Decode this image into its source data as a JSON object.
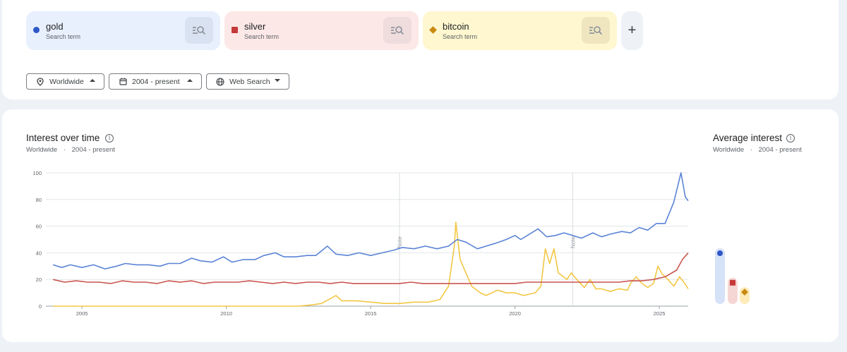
{
  "search_terms": [
    {
      "name": "gold",
      "sub": "Search term",
      "color": "#2f57c8",
      "bg": "#e8f0fe",
      "btn_bg": "#d9e2f0",
      "marker": "circle"
    },
    {
      "name": "silver",
      "sub": "Search term",
      "color": "#c5393a",
      "bg": "#fce8e6",
      "btn_bg": "#efdcdc",
      "marker": "square"
    },
    {
      "name": "bitcoin",
      "sub": "Search term",
      "color": "#c98a12",
      "bg": "#fef7cf",
      "btn_bg": "#efe6c0",
      "marker": "diamond"
    }
  ],
  "add_label": "+",
  "filters": {
    "region": "Worldwide",
    "period": "2004 - present",
    "property": "Web Search"
  },
  "interest_over_time": {
    "title": "Interest over time",
    "region": "Worldwide",
    "period": "2004 - present",
    "separator": "·",
    "info_glyph": "i"
  },
  "average_interest": {
    "title": "Average interest",
    "region": "Worldwide",
    "period": "2004 - present",
    "separator": "·",
    "info_glyph": "i"
  },
  "chart_data": {
    "type": "line",
    "x_range": [
      2003.75,
      2026.0
    ],
    "ylim": [
      0,
      100
    ],
    "y_ticks": [
      0,
      20,
      40,
      60,
      80,
      100
    ],
    "x_ticks": [
      2005,
      2010,
      2015,
      2020,
      2025
    ],
    "grid": true,
    "notes": [
      {
        "x": 2016.0,
        "label": "Note"
      },
      {
        "x": 2022.0,
        "label": "Note"
      }
    ],
    "series": [
      {
        "name": "gold",
        "color": "#5b84d6",
        "points": [
          [
            2004.0,
            31
          ],
          [
            2004.3,
            29
          ],
          [
            2004.6,
            31
          ],
          [
            2005.0,
            29
          ],
          [
            2005.4,
            31
          ],
          [
            2005.8,
            28
          ],
          [
            2006.2,
            30
          ],
          [
            2006.5,
            32
          ],
          [
            2006.9,
            31
          ],
          [
            2007.3,
            31
          ],
          [
            2007.7,
            30
          ],
          [
            2008.0,
            32
          ],
          [
            2008.4,
            32
          ],
          [
            2008.8,
            36
          ],
          [
            2009.1,
            34
          ],
          [
            2009.5,
            33
          ],
          [
            2009.9,
            37
          ],
          [
            2010.2,
            33
          ],
          [
            2010.6,
            35
          ],
          [
            2011.0,
            35
          ],
          [
            2011.3,
            38
          ],
          [
            2011.7,
            40
          ],
          [
            2012.0,
            37
          ],
          [
            2012.4,
            37
          ],
          [
            2012.8,
            38
          ],
          [
            2013.1,
            38
          ],
          [
            2013.5,
            45
          ],
          [
            2013.8,
            39
          ],
          [
            2014.2,
            38
          ],
          [
            2014.6,
            40
          ],
          [
            2015.0,
            38
          ],
          [
            2015.4,
            40
          ],
          [
            2015.8,
            42
          ],
          [
            2016.1,
            44
          ],
          [
            2016.5,
            43
          ],
          [
            2016.9,
            45
          ],
          [
            2017.3,
            43
          ],
          [
            2017.7,
            45
          ],
          [
            2018.0,
            50
          ],
          [
            2018.3,
            48
          ],
          [
            2018.7,
            43
          ],
          [
            2019.0,
            45
          ],
          [
            2019.3,
            47
          ],
          [
            2019.7,
            50
          ],
          [
            2020.0,
            53
          ],
          [
            2020.2,
            50
          ],
          [
            2020.5,
            54
          ],
          [
            2020.8,
            58
          ],
          [
            2021.1,
            52
          ],
          [
            2021.4,
            53
          ],
          [
            2021.7,
            55
          ],
          [
            2022.0,
            53
          ],
          [
            2022.3,
            51
          ],
          [
            2022.7,
            55
          ],
          [
            2023.0,
            52
          ],
          [
            2023.3,
            54
          ],
          [
            2023.7,
            56
          ],
          [
            2024.0,
            55
          ],
          [
            2024.3,
            59
          ],
          [
            2024.6,
            57
          ],
          [
            2024.9,
            62
          ],
          [
            2025.2,
            62
          ],
          [
            2025.5,
            78
          ],
          [
            2025.75,
            100
          ],
          [
            2025.9,
            82
          ],
          [
            2026.0,
            79
          ]
        ]
      },
      {
        "name": "silver",
        "color": "#c9544f",
        "points": [
          [
            2004.0,
            20
          ],
          [
            2004.4,
            18
          ],
          [
            2004.8,
            19
          ],
          [
            2005.2,
            18
          ],
          [
            2005.6,
            18
          ],
          [
            2006.0,
            17
          ],
          [
            2006.4,
            19
          ],
          [
            2006.8,
            18
          ],
          [
            2007.2,
            18
          ],
          [
            2007.6,
            17
          ],
          [
            2008.0,
            19
          ],
          [
            2008.4,
            18
          ],
          [
            2008.8,
            19
          ],
          [
            2009.2,
            17
          ],
          [
            2009.6,
            18
          ],
          [
            2010.0,
            18
          ],
          [
            2010.4,
            18
          ],
          [
            2010.8,
            19
          ],
          [
            2011.2,
            18
          ],
          [
            2011.6,
            17
          ],
          [
            2012.0,
            18
          ],
          [
            2012.4,
            17
          ],
          [
            2012.8,
            18
          ],
          [
            2013.2,
            18
          ],
          [
            2013.6,
            17
          ],
          [
            2014.0,
            18
          ],
          [
            2014.4,
            17
          ],
          [
            2014.8,
            17
          ],
          [
            2015.2,
            17
          ],
          [
            2015.6,
            17
          ],
          [
            2016.0,
            17
          ],
          [
            2016.4,
            18
          ],
          [
            2016.8,
            17
          ],
          [
            2017.2,
            17
          ],
          [
            2017.6,
            17
          ],
          [
            2018.0,
            17
          ],
          [
            2018.4,
            17
          ],
          [
            2018.8,
            17
          ],
          [
            2019.2,
            17
          ],
          [
            2019.6,
            17
          ],
          [
            2020.0,
            17
          ],
          [
            2020.4,
            18
          ],
          [
            2020.8,
            18
          ],
          [
            2021.2,
            18
          ],
          [
            2021.6,
            18
          ],
          [
            2022.0,
            18
          ],
          [
            2022.4,
            18
          ],
          [
            2022.8,
            18
          ],
          [
            2023.2,
            18
          ],
          [
            2023.6,
            18
          ],
          [
            2024.0,
            19
          ],
          [
            2024.4,
            19
          ],
          [
            2024.8,
            20
          ],
          [
            2025.2,
            22
          ],
          [
            2025.6,
            27
          ],
          [
            2025.8,
            35
          ],
          [
            2026.0,
            40
          ]
        ]
      },
      {
        "name": "bitcoin",
        "color": "#f2c744",
        "points": [
          [
            2004.0,
            0
          ],
          [
            2008.0,
            0
          ],
          [
            2010.0,
            0
          ],
          [
            2011.5,
            0
          ],
          [
            2012.5,
            0
          ],
          [
            2013.0,
            1
          ],
          [
            2013.3,
            2
          ],
          [
            2013.8,
            8
          ],
          [
            2014.0,
            4
          ],
          [
            2014.5,
            4
          ],
          [
            2015.0,
            3
          ],
          [
            2015.5,
            2
          ],
          [
            2016.0,
            2
          ],
          [
            2016.5,
            3
          ],
          [
            2017.0,
            3
          ],
          [
            2017.4,
            5
          ],
          [
            2017.7,
            15
          ],
          [
            2017.9,
            45
          ],
          [
            2017.95,
            63
          ],
          [
            2018.1,
            35
          ],
          [
            2018.3,
            25
          ],
          [
            2018.5,
            15
          ],
          [
            2018.8,
            10
          ],
          [
            2019.0,
            8
          ],
          [
            2019.4,
            12
          ],
          [
            2019.7,
            10
          ],
          [
            2020.0,
            10
          ],
          [
            2020.3,
            8
          ],
          [
            2020.7,
            10
          ],
          [
            2020.9,
            15
          ],
          [
            2021.05,
            43
          ],
          [
            2021.2,
            32
          ],
          [
            2021.35,
            43
          ],
          [
            2021.5,
            25
          ],
          [
            2021.8,
            20
          ],
          [
            2021.95,
            25
          ],
          [
            2022.1,
            21
          ],
          [
            2022.4,
            14
          ],
          [
            2022.6,
            20
          ],
          [
            2022.8,
            13
          ],
          [
            2023.0,
            13
          ],
          [
            2023.3,
            11
          ],
          [
            2023.6,
            13
          ],
          [
            2023.9,
            12
          ],
          [
            2024.0,
            17
          ],
          [
            2024.2,
            22
          ],
          [
            2024.4,
            17
          ],
          [
            2024.6,
            14
          ],
          [
            2024.8,
            17
          ],
          [
            2024.95,
            30
          ],
          [
            2025.1,
            24
          ],
          [
            2025.3,
            20
          ],
          [
            2025.5,
            15
          ],
          [
            2025.7,
            22
          ],
          [
            2025.85,
            18
          ],
          [
            2026.0,
            13
          ]
        ]
      }
    ],
    "average": [
      {
        "name": "gold",
        "value": 40,
        "bar_color": "#d6e2f8",
        "marker_color": "#2f57c8",
        "marker": "circle"
      },
      {
        "name": "silver",
        "value": 18,
        "bar_color": "#f6d6d4",
        "marker_color": "#c5393a",
        "marker": "square"
      },
      {
        "name": "bitcoin",
        "value": 11,
        "bar_color": "#fdebb9",
        "marker_color": "#c98a12",
        "marker": "diamond"
      }
    ]
  }
}
